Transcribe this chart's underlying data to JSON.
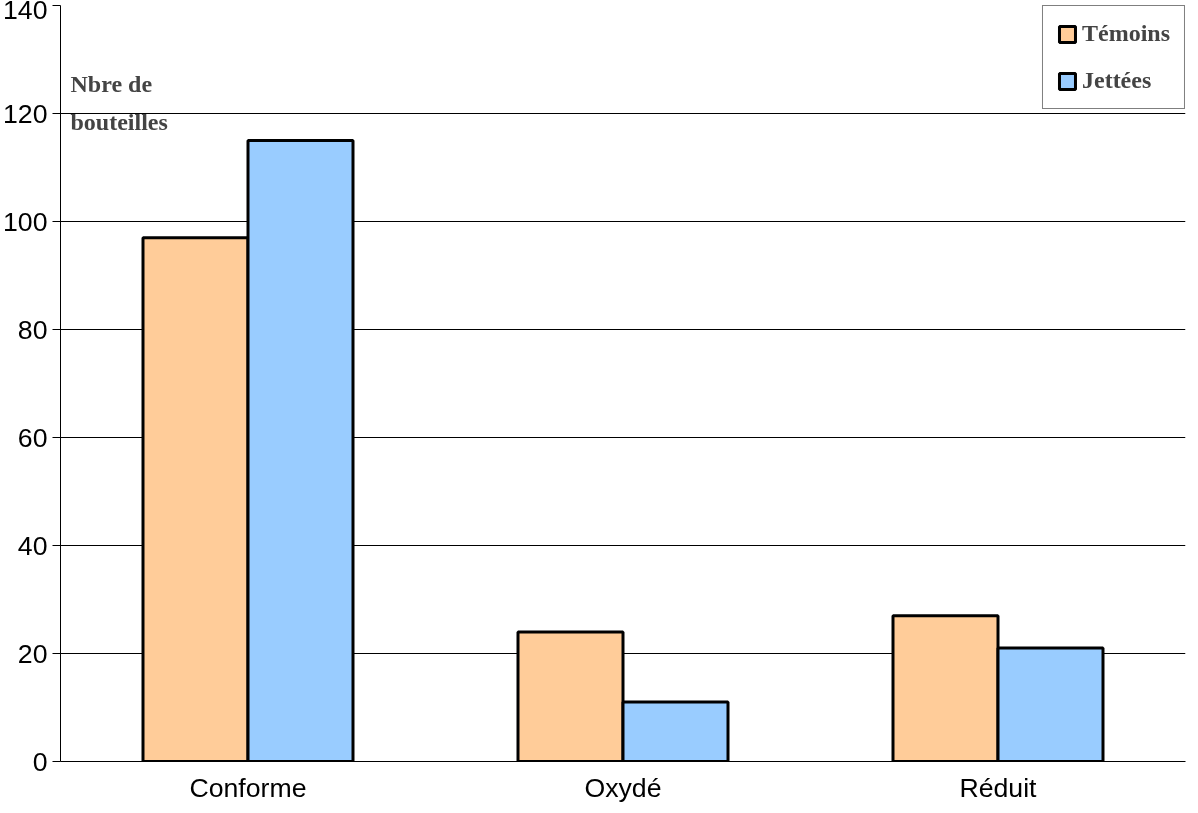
{
  "chart_data": {
    "type": "bar",
    "ylabel": "Nbre de bouteilles",
    "categories": [
      "Conforme",
      "Oxydé",
      "Réduit"
    ],
    "series": [
      {
        "name": "Témoins",
        "color": "#ffcc99",
        "values": [
          97,
          24,
          27
        ]
      },
      {
        "name": "Jettées",
        "color": "#99ccff",
        "values": [
          115,
          11,
          21
        ]
      }
    ],
    "ylim": [
      0,
      140
    ],
    "yticks": [
      0,
      20,
      40,
      60,
      80,
      100,
      120,
      140
    ],
    "grid": "y",
    "legend": "top right"
  }
}
